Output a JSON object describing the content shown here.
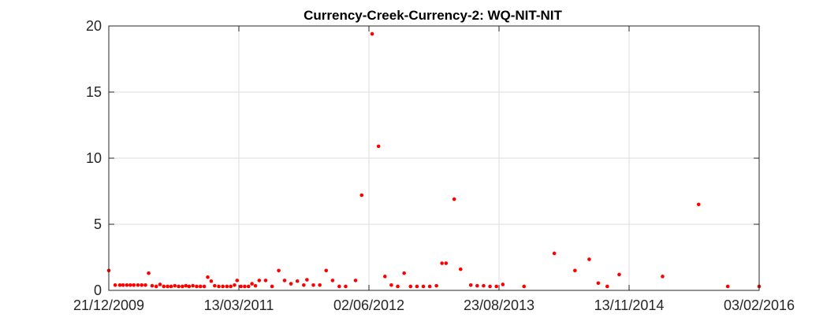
{
  "chart_data": {
    "type": "scatter",
    "title": "Currency-Creek-Currency-2: WQ-NIT-NIT",
    "xlabel": "",
    "ylabel": "",
    "grid": true,
    "legend": "none",
    "colors": {
      "marker": "#ff0000",
      "grid": "#dedede",
      "axis": "#262626"
    },
    "xlim": [
      "2009-12-21",
      "2016-02-03"
    ],
    "ylim": [
      0,
      20
    ],
    "xticks": [
      {
        "date": "2009-12-21",
        "label": "21/12/2009"
      },
      {
        "date": "2011-03-13",
        "label": "13/03/2011"
      },
      {
        "date": "2012-06-02",
        "label": "02/06/2012"
      },
      {
        "date": "2013-08-23",
        "label": "23/08/2013"
      },
      {
        "date": "2014-11-13",
        "label": "13/11/2014"
      },
      {
        "date": "2016-02-03",
        "label": "03/02/2016"
      }
    ],
    "yticks": [
      0,
      5,
      10,
      15,
      20
    ],
    "series": [
      {
        "points": [
          [
            "2009-12-21",
            1.5
          ],
          [
            "2010-01-12",
            0.4
          ],
          [
            "2010-01-28",
            0.4
          ],
          [
            "2010-02-08",
            0.4
          ],
          [
            "2010-02-21",
            0.4
          ],
          [
            "2010-03-05",
            0.4
          ],
          [
            "2010-03-17",
            0.4
          ],
          [
            "2010-03-31",
            0.4
          ],
          [
            "2010-04-13",
            0.4
          ],
          [
            "2010-04-26",
            0.4
          ],
          [
            "2010-05-07",
            1.3
          ],
          [
            "2010-05-19",
            0.35
          ],
          [
            "2010-06-02",
            0.3
          ],
          [
            "2010-06-15",
            0.45
          ],
          [
            "2010-06-28",
            0.3
          ],
          [
            "2010-07-11",
            0.3
          ],
          [
            "2010-07-23",
            0.3
          ],
          [
            "2010-08-05",
            0.35
          ],
          [
            "2010-08-18",
            0.3
          ],
          [
            "2010-08-31",
            0.3
          ],
          [
            "2010-09-12",
            0.35
          ],
          [
            "2010-09-23",
            0.3
          ],
          [
            "2010-10-06",
            0.35
          ],
          [
            "2010-10-19",
            0.3
          ],
          [
            "2010-11-01",
            0.3
          ],
          [
            "2010-11-14",
            0.3
          ],
          [
            "2010-11-26",
            1.0
          ],
          [
            "2010-12-08",
            0.7
          ],
          [
            "2010-12-20",
            0.35
          ],
          [
            "2011-01-03",
            0.3
          ],
          [
            "2011-01-17",
            0.3
          ],
          [
            "2011-01-31",
            0.3
          ],
          [
            "2011-02-13",
            0.3
          ],
          [
            "2011-02-26",
            0.4
          ],
          [
            "2011-03-07",
            0.75
          ],
          [
            "2011-03-20",
            0.3
          ],
          [
            "2011-04-02",
            0.3
          ],
          [
            "2011-04-15",
            0.3
          ],
          [
            "2011-04-27",
            0.5
          ],
          [
            "2011-05-09",
            0.35
          ],
          [
            "2011-05-22",
            0.75
          ],
          [
            "2011-06-13",
            0.75
          ],
          [
            "2011-07-05",
            0.3
          ],
          [
            "2011-07-28",
            1.5
          ],
          [
            "2011-08-17",
            0.75
          ],
          [
            "2011-09-08",
            0.5
          ],
          [
            "2011-09-30",
            0.7
          ],
          [
            "2011-10-22",
            0.4
          ],
          [
            "2011-11-02",
            0.8
          ],
          [
            "2011-11-24",
            0.4
          ],
          [
            "2011-12-16",
            0.4
          ],
          [
            "2012-01-07",
            1.5
          ],
          [
            "2012-01-29",
            0.75
          ],
          [
            "2012-02-21",
            0.3
          ],
          [
            "2012-03-14",
            0.3
          ],
          [
            "2012-04-17",
            0.75
          ],
          [
            "2012-05-08",
            7.2
          ],
          [
            "2012-06-13",
            19.4
          ],
          [
            "2012-07-05",
            10.9
          ],
          [
            "2012-07-27",
            1.05
          ],
          [
            "2012-08-18",
            0.4
          ],
          [
            "2012-09-09",
            0.3
          ],
          [
            "2012-10-01",
            1.3
          ],
          [
            "2012-10-23",
            0.3
          ],
          [
            "2012-11-14",
            0.3
          ],
          [
            "2012-12-06",
            0.3
          ],
          [
            "2012-12-28",
            0.3
          ],
          [
            "2013-01-20",
            0.35
          ],
          [
            "2013-02-08",
            2.05
          ],
          [
            "2013-02-22",
            2.05
          ],
          [
            "2013-03-22",
            6.9
          ],
          [
            "2013-04-13",
            1.6
          ],
          [
            "2013-05-18",
            0.4
          ],
          [
            "2013-06-09",
            0.35
          ],
          [
            "2013-07-01",
            0.35
          ],
          [
            "2013-07-23",
            0.3
          ],
          [
            "2013-08-14",
            0.3
          ],
          [
            "2013-09-05",
            0.45
          ],
          [
            "2013-11-17",
            0.3
          ],
          [
            "2014-03-01",
            2.8
          ],
          [
            "2014-05-11",
            1.5
          ],
          [
            "2014-06-29",
            2.35
          ],
          [
            "2014-07-30",
            0.55
          ],
          [
            "2014-08-30",
            0.3
          ],
          [
            "2014-10-10",
            1.2
          ],
          [
            "2015-03-08",
            1.05
          ],
          [
            "2015-07-10",
            6.5
          ],
          [
            "2015-10-18",
            0.3
          ],
          [
            "2016-02-03",
            0.3
          ]
        ]
      }
    ]
  }
}
